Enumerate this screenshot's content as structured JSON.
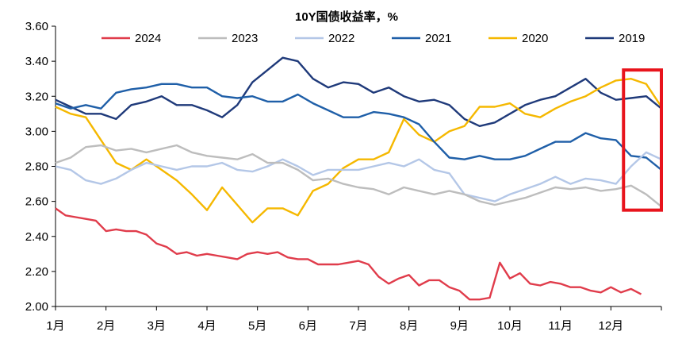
{
  "chart_data": {
    "type": "line",
    "title": "10Y国债收益率，%",
    "ylim": [
      2.0,
      3.6
    ],
    "ytick_values": [
      2.0,
      2.2,
      2.4,
      2.6,
      2.8,
      3.0,
      3.2,
      3.4,
      3.6
    ],
    "ytick_labels": [
      "2.00",
      "2.20",
      "2.40",
      "2.60",
      "2.80",
      "3.00",
      "3.20",
      "3.40",
      "3.60"
    ],
    "xlim": [
      0,
      12
    ],
    "xtick_labels": [
      "1月",
      "2月",
      "3月",
      "4月",
      "5月",
      "6月",
      "7月",
      "8月",
      "9月",
      "10月",
      "11月",
      "12月"
    ],
    "grid": false,
    "legend_position": "top",
    "highlight_box": {
      "x_range": [
        11.25,
        12.0
      ],
      "y_range": [
        2.55,
        3.35
      ],
      "color": "#e8141c"
    },
    "series": [
      {
        "name": "2024",
        "color": "#e03c4b",
        "x": [
          0.0,
          0.2,
          0.4,
          0.6,
          0.8,
          1.0,
          1.2,
          1.4,
          1.6,
          1.8,
          2.0,
          2.2,
          2.4,
          2.6,
          2.8,
          3.0,
          3.2,
          3.4,
          3.6,
          3.8,
          4.0,
          4.2,
          4.4,
          4.6,
          4.8,
          5.0,
          5.2,
          5.4,
          5.6,
          5.8,
          6.0,
          6.2,
          6.4,
          6.6,
          6.8,
          7.0,
          7.2,
          7.4,
          7.6,
          7.8,
          8.0,
          8.2,
          8.4,
          8.6,
          8.8,
          9.0,
          9.2,
          9.4,
          9.6,
          9.8,
          10.0,
          10.2,
          10.4,
          10.6,
          10.8,
          11.0,
          11.2,
          11.4,
          11.6
        ],
        "values": [
          2.56,
          2.52,
          2.51,
          2.5,
          2.49,
          2.43,
          2.44,
          2.43,
          2.43,
          2.41,
          2.36,
          2.34,
          2.3,
          2.31,
          2.29,
          2.3,
          2.29,
          2.28,
          2.27,
          2.3,
          2.31,
          2.3,
          2.31,
          2.28,
          2.27,
          2.27,
          2.24,
          2.24,
          2.24,
          2.25,
          2.26,
          2.24,
          2.17,
          2.13,
          2.16,
          2.18,
          2.12,
          2.15,
          2.15,
          2.11,
          2.09,
          2.04,
          2.04,
          2.05,
          2.25,
          2.16,
          2.19,
          2.13,
          2.12,
          2.14,
          2.13,
          2.11,
          2.11,
          2.09,
          2.08,
          2.11,
          2.08,
          2.1,
          2.07
        ]
      },
      {
        "name": "2023",
        "color": "#bdbdbd",
        "x": [
          0.0,
          0.3,
          0.6,
          0.9,
          1.2,
          1.5,
          1.8,
          2.1,
          2.4,
          2.7,
          3.0,
          3.3,
          3.6,
          3.9,
          4.2,
          4.5,
          4.8,
          5.1,
          5.4,
          5.7,
          6.0,
          6.3,
          6.6,
          6.9,
          7.2,
          7.5,
          7.8,
          8.1,
          8.4,
          8.7,
          9.0,
          9.3,
          9.6,
          9.9,
          10.2,
          10.5,
          10.8,
          11.1,
          11.4,
          11.7,
          12.0
        ],
        "values": [
          2.82,
          2.85,
          2.91,
          2.92,
          2.89,
          2.9,
          2.88,
          2.9,
          2.92,
          2.88,
          2.86,
          2.85,
          2.84,
          2.87,
          2.82,
          2.82,
          2.78,
          2.72,
          2.73,
          2.7,
          2.68,
          2.67,
          2.64,
          2.68,
          2.66,
          2.64,
          2.66,
          2.64,
          2.6,
          2.58,
          2.6,
          2.62,
          2.65,
          2.68,
          2.67,
          2.68,
          2.66,
          2.67,
          2.69,
          2.64,
          2.57
        ]
      },
      {
        "name": "2022",
        "color": "#b4c7e7",
        "x": [
          0.0,
          0.3,
          0.6,
          0.9,
          1.2,
          1.5,
          1.8,
          2.1,
          2.4,
          2.7,
          3.0,
          3.3,
          3.6,
          3.9,
          4.2,
          4.5,
          4.8,
          5.1,
          5.4,
          5.7,
          6.0,
          6.3,
          6.6,
          6.9,
          7.2,
          7.5,
          7.8,
          8.1,
          8.4,
          8.7,
          9.0,
          9.3,
          9.6,
          9.9,
          10.2,
          10.5,
          10.8,
          11.1,
          11.4,
          11.7,
          12.0
        ],
        "values": [
          2.8,
          2.78,
          2.72,
          2.7,
          2.73,
          2.78,
          2.82,
          2.8,
          2.78,
          2.8,
          2.8,
          2.82,
          2.78,
          2.77,
          2.8,
          2.84,
          2.8,
          2.75,
          2.78,
          2.78,
          2.78,
          2.8,
          2.82,
          2.8,
          2.84,
          2.78,
          2.76,
          2.64,
          2.62,
          2.6,
          2.64,
          2.67,
          2.7,
          2.74,
          2.7,
          2.73,
          2.72,
          2.7,
          2.8,
          2.88,
          2.84
        ]
      },
      {
        "name": "2021",
        "color": "#1f5fa8",
        "x": [
          0.0,
          0.3,
          0.6,
          0.9,
          1.2,
          1.5,
          1.8,
          2.1,
          2.4,
          2.7,
          3.0,
          3.3,
          3.6,
          3.9,
          4.2,
          4.5,
          4.8,
          5.1,
          5.4,
          5.7,
          6.0,
          6.3,
          6.6,
          6.9,
          7.2,
          7.5,
          7.8,
          8.1,
          8.4,
          8.7,
          9.0,
          9.3,
          9.6,
          9.9,
          10.2,
          10.5,
          10.8,
          11.1,
          11.4,
          11.7,
          12.0
        ],
        "values": [
          3.16,
          3.13,
          3.15,
          3.13,
          3.22,
          3.24,
          3.25,
          3.27,
          3.27,
          3.25,
          3.25,
          3.2,
          3.19,
          3.2,
          3.17,
          3.17,
          3.21,
          3.16,
          3.12,
          3.08,
          3.08,
          3.11,
          3.1,
          3.08,
          3.04,
          2.94,
          2.85,
          2.84,
          2.86,
          2.84,
          2.84,
          2.86,
          2.9,
          2.94,
          2.94,
          2.99,
          2.96,
          2.95,
          2.86,
          2.85,
          2.78
        ]
      },
      {
        "name": "2020",
        "color": "#f5b800",
        "x": [
          0.0,
          0.3,
          0.6,
          0.9,
          1.2,
          1.5,
          1.8,
          2.1,
          2.4,
          2.7,
          3.0,
          3.3,
          3.6,
          3.9,
          4.2,
          4.5,
          4.8,
          5.1,
          5.4,
          5.7,
          6.0,
          6.3,
          6.6,
          6.9,
          7.2,
          7.5,
          7.8,
          8.1,
          8.4,
          8.7,
          9.0,
          9.3,
          9.6,
          9.9,
          10.2,
          10.5,
          10.8,
          11.1,
          11.4,
          11.7,
          12.0
        ],
        "values": [
          3.14,
          3.1,
          3.08,
          2.95,
          2.82,
          2.78,
          2.84,
          2.78,
          2.72,
          2.64,
          2.55,
          2.68,
          2.58,
          2.48,
          2.56,
          2.56,
          2.52,
          2.66,
          2.7,
          2.79,
          2.84,
          2.84,
          2.88,
          3.07,
          2.98,
          2.94,
          3.0,
          3.03,
          3.14,
          3.14,
          3.16,
          3.1,
          3.08,
          3.13,
          3.17,
          3.2,
          3.25,
          3.29,
          3.3,
          3.27,
          3.14
        ]
      },
      {
        "name": "2019",
        "color": "#1f3a7a",
        "x": [
          0.0,
          0.3,
          0.6,
          0.9,
          1.2,
          1.5,
          1.8,
          2.1,
          2.4,
          2.7,
          3.0,
          3.3,
          3.6,
          3.9,
          4.2,
          4.5,
          4.8,
          5.1,
          5.4,
          5.7,
          6.0,
          6.3,
          6.6,
          6.9,
          7.2,
          7.5,
          7.8,
          8.1,
          8.4,
          8.7,
          9.0,
          9.3,
          9.6,
          9.9,
          10.2,
          10.5,
          10.8,
          11.1,
          11.4,
          11.7,
          12.0
        ],
        "values": [
          3.18,
          3.14,
          3.1,
          3.1,
          3.07,
          3.15,
          3.17,
          3.2,
          3.15,
          3.15,
          3.12,
          3.08,
          3.15,
          3.28,
          3.35,
          3.42,
          3.4,
          3.3,
          3.25,
          3.28,
          3.27,
          3.22,
          3.25,
          3.2,
          3.17,
          3.18,
          3.15,
          3.07,
          3.03,
          3.05,
          3.1,
          3.15,
          3.18,
          3.2,
          3.25,
          3.3,
          3.22,
          3.18,
          3.19,
          3.2,
          3.13
        ]
      }
    ]
  }
}
